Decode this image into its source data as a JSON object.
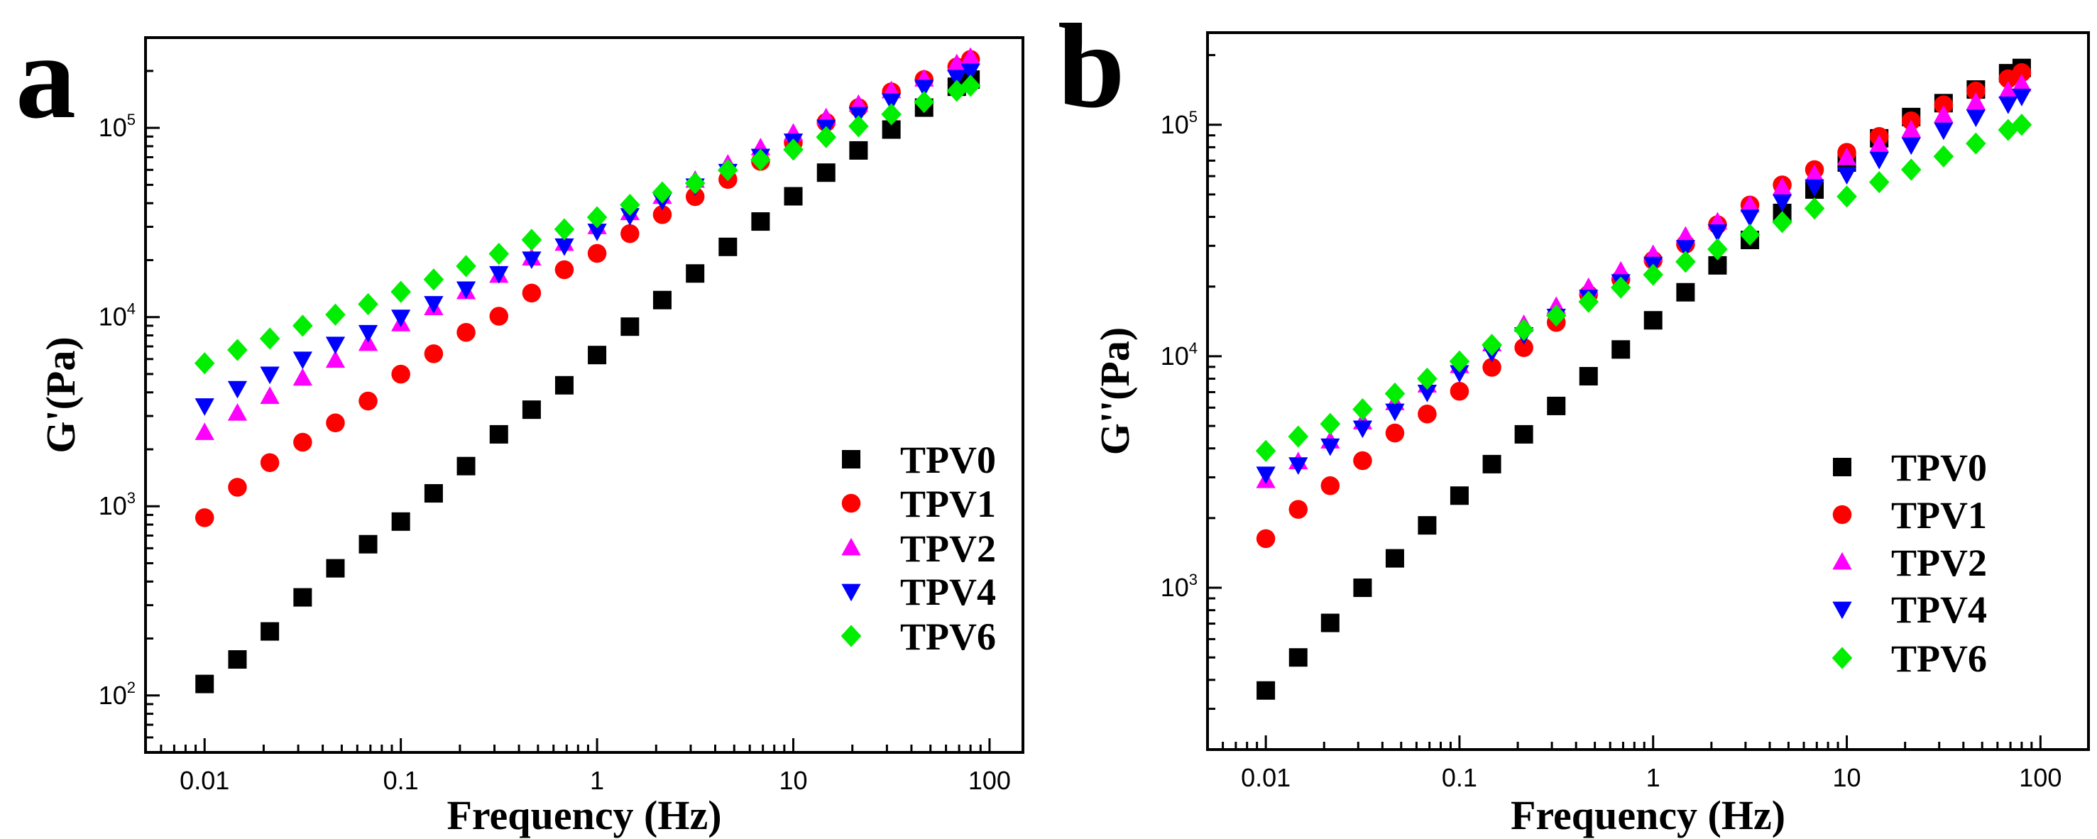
{
  "chart_data": [
    {
      "type": "scatter",
      "panel_label": "a",
      "title": "",
      "xlabel": "Frequency (Hz)",
      "ylabel": "G'(Pa)",
      "xscale": "log",
      "yscale": "log",
      "xlim": [
        0.005,
        148
      ],
      "ylim": [
        50,
        300000
      ],
      "xticks": [
        0.01,
        0.1,
        1,
        10,
        100
      ],
      "xtick_labels": [
        "0.01",
        "0.1",
        "1",
        "10",
        "100"
      ],
      "yticks": [
        100,
        1000,
        10000,
        100000
      ],
      "ytick_labels": [
        {
          "base": "10",
          "exp": "2"
        },
        {
          "base": "10",
          "exp": "3"
        },
        {
          "base": "10",
          "exp": "4"
        },
        {
          "base": "10",
          "exp": "5"
        }
      ],
      "grid": false,
      "legend_position": "bottom-right",
      "x": [
        0.01,
        0.0147,
        0.0215,
        0.0316,
        0.0464,
        0.0681,
        0.1,
        0.147,
        0.215,
        0.316,
        0.464,
        0.681,
        1,
        1.47,
        2.15,
        3.16,
        4.64,
        6.81,
        10,
        14.7,
        21.5,
        31.6,
        46.4,
        68.1,
        80
      ],
      "series": [
        {
          "name": "TPV0",
          "marker": "square",
          "color": "#000000",
          "values": [
            115,
            155,
            218,
            330,
            470,
            630,
            830,
            1170,
            1630,
            2400,
            3240,
            4360,
            6300,
            8900,
            12300,
            17000,
            23500,
            32000,
            43500,
            58000,
            76000,
            98000,
            128000,
            165000,
            180000
          ]
        },
        {
          "name": "TPV1",
          "marker": "circle",
          "color": "#ff0000",
          "values": [
            870,
            1260,
            1700,
            2180,
            2760,
            3600,
            4990,
            6400,
            8300,
            10100,
            13400,
            17800,
            21700,
            27600,
            34800,
            43300,
            53400,
            66500,
            83600,
            107000,
            128000,
            155000,
            180000,
            210000,
            230000
          ]
        },
        {
          "name": "TPV2",
          "marker": "triangle-up",
          "color": "#ff00ff",
          "values": [
            2450,
            3100,
            3800,
            4750,
            5900,
            7250,
            9200,
            11200,
            13600,
            16600,
            20500,
            24500,
            30000,
            35600,
            43400,
            52800,
            64300,
            78300,
            93600,
            113000,
            133000,
            157000,
            181000,
            218000,
            236000
          ]
        },
        {
          "name": "TPV4",
          "marker": "triangle-down",
          "color": "#0000ff",
          "values": [
            3400,
            4200,
            5000,
            6000,
            7200,
            8300,
            10000,
            11800,
            14100,
            17000,
            20300,
            23800,
            28500,
            34400,
            41400,
            49400,
            59000,
            70900,
            85300,
            101000,
            118000,
            139000,
            164000,
            185000,
            200000
          ]
        },
        {
          "name": "TPV6",
          "marker": "diamond",
          "color": "#00ee00",
          "values": [
            5700,
            6700,
            7700,
            9000,
            10300,
            11700,
            13600,
            15800,
            18600,
            21600,
            25600,
            29100,
            33700,
            39200,
            45600,
            51000,
            59800,
            67800,
            76800,
            89400,
            102000,
            118000,
            137000,
            157000,
            167000
          ]
        }
      ]
    },
    {
      "type": "scatter",
      "panel_label": "b",
      "title": "",
      "xlabel": "Frequency (Hz)",
      "ylabel": "G''(Pa)",
      "xscale": "log",
      "yscale": "log",
      "xlim": [
        0.005,
        177
      ],
      "ylim": [
        200,
        250000
      ],
      "xticks": [
        0.01,
        0.1,
        1,
        10,
        100
      ],
      "xtick_labels": [
        "0.01",
        "0.1",
        "1",
        "10",
        "100"
      ],
      "yticks": [
        1000,
        10000,
        100000
      ],
      "ytick_labels": [
        {
          "base": "10",
          "exp": "3"
        },
        {
          "base": "10",
          "exp": "4"
        },
        {
          "base": "10",
          "exp": "5"
        }
      ],
      "grid": false,
      "legend_position": "bottom-right",
      "x": [
        0.01,
        0.0147,
        0.0215,
        0.0316,
        0.0464,
        0.0681,
        0.1,
        0.147,
        0.215,
        0.316,
        0.464,
        0.681,
        1,
        1.47,
        2.15,
        3.16,
        4.64,
        6.81,
        10,
        14.7,
        21.5,
        31.6,
        46.4,
        68.1,
        80
      ],
      "series": [
        {
          "name": "TPV0",
          "marker": "square",
          "color": "#000000",
          "values": [
            360,
            500,
            705,
            1000,
            1340,
            1860,
            2500,
            3420,
            4600,
            6100,
            8200,
            10700,
            14300,
            18900,
            24700,
            31800,
            41600,
            52500,
            68700,
            87400,
            108000,
            124000,
            142000,
            167000,
            176000
          ]
        },
        {
          "name": "TPV1",
          "marker": "circle",
          "color": "#ff0000",
          "values": [
            1630,
            2180,
            2760,
            3540,
            4660,
            5630,
            7060,
            8960,
            10900,
            14000,
            18500,
            21500,
            26000,
            30500,
            37000,
            45000,
            55000,
            64000,
            76000,
            89000,
            104000,
            122000,
            140000,
            158000,
            168000
          ]
        },
        {
          "name": "TPV2",
          "marker": "triangle-up",
          "color": "#ff00ff",
          "values": [
            2900,
            3500,
            4300,
            5200,
            6300,
            7500,
            9100,
            11300,
            13700,
            16400,
            19800,
            23300,
            27500,
            33000,
            38000,
            45000,
            53500,
            61000,
            72000,
            82000,
            95000,
            110000,
            125000,
            140000,
            150000
          ]
        },
        {
          "name": "TPV4",
          "marker": "triangle-down",
          "color": "#0000ff",
          "values": [
            3100,
            3400,
            4100,
            4900,
            5800,
            7000,
            8500,
            10400,
            12400,
            14900,
            18000,
            21000,
            25000,
            29500,
            34500,
            40000,
            46500,
            54000,
            61000,
            71000,
            82000,
            95000,
            108000,
            123000,
            133000
          ]
        },
        {
          "name": "TPV6",
          "marker": "diamond",
          "color": "#00ee00",
          "values": [
            3900,
            4500,
            5100,
            5900,
            6900,
            8000,
            9500,
            11200,
            13000,
            15000,
            17200,
            19800,
            22500,
            25600,
            29000,
            33500,
            38000,
            43500,
            49000,
            56500,
            64000,
            73000,
            83000,
            95000,
            100000
          ]
        }
      ]
    }
  ]
}
